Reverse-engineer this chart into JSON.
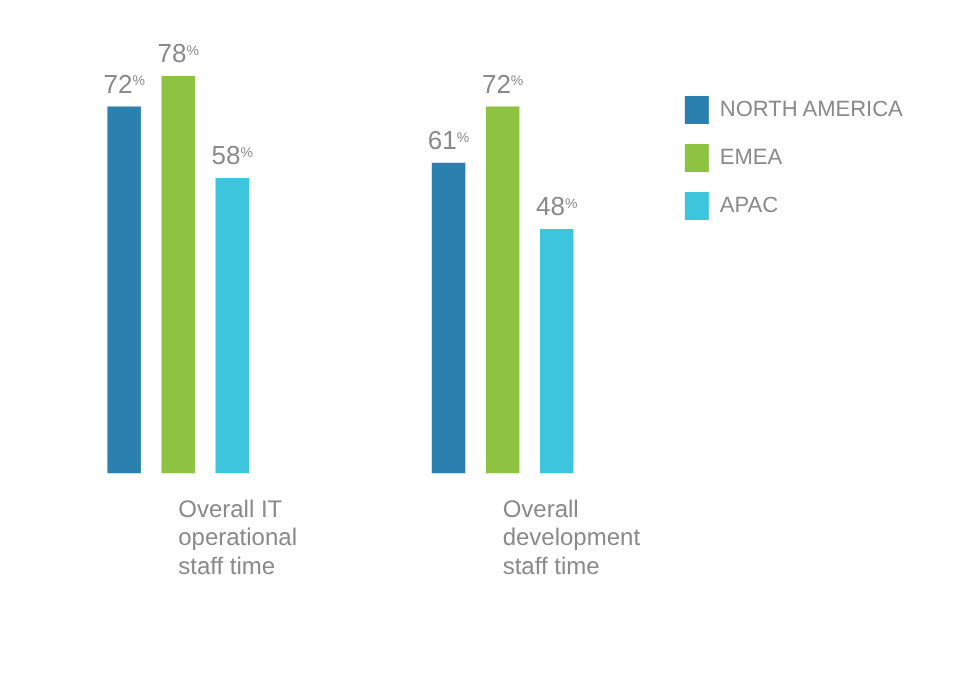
{
  "chart_data": {
    "type": "bar",
    "categories": [
      "Overall IT operational staff time",
      "Overall development staff time"
    ],
    "series": [
      {
        "name": "NORTH AMERICA",
        "color": "#2a80ae",
        "values": [
          72,
          61
        ],
        "value_labels": [
          "72%",
          "61%"
        ]
      },
      {
        "name": "EMEA",
        "color": "#8dc341",
        "values": [
          78,
          72
        ],
        "value_labels": [
          "78%",
          "72%"
        ]
      },
      {
        "name": "APAC",
        "color": "#3ec5de",
        "values": [
          58,
          48
        ],
        "value_labels": [
          "58%",
          "48%"
        ]
      }
    ],
    "legend": "top right",
    "tick_labels": "x"
  }
}
